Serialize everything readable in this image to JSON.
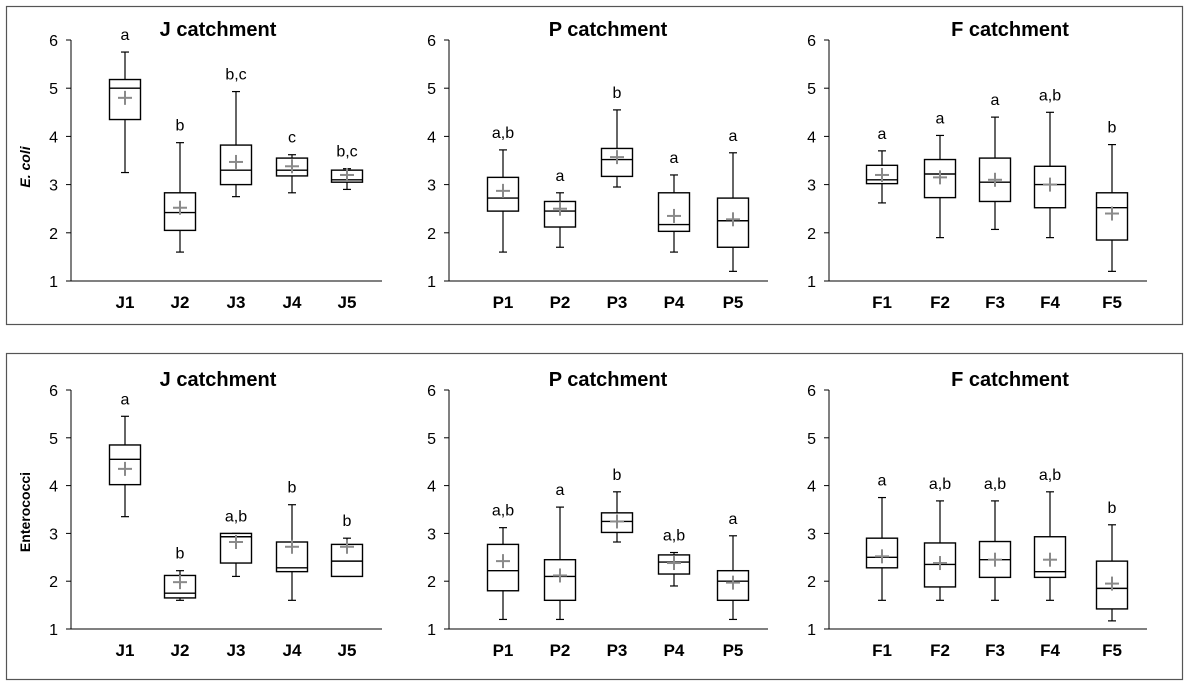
{
  "figure": {
    "rows": [
      {
        "ylabel": "E. coli"
      },
      {
        "ylabel": "Enterococci"
      }
    ]
  },
  "chart_data": [
    {
      "type": "box",
      "row": 0,
      "col": 0,
      "title": "J catchment",
      "ylabel": "E. coli",
      "ylim": [
        1,
        6
      ],
      "yticks": [
        "1",
        "2",
        "3",
        "4",
        "5",
        "6"
      ],
      "categories": [
        "J1",
        "J2",
        "J3",
        "J4",
        "J5"
      ],
      "boxes": [
        {
          "min": 3.25,
          "q1": 4.35,
          "median": 5.0,
          "q3": 5.18,
          "max": 5.75,
          "mean": 4.8,
          "letter": "a"
        },
        {
          "min": 1.6,
          "q1": 2.05,
          "median": 2.42,
          "q3": 2.83,
          "max": 3.87,
          "mean": 2.52,
          "letter": "b"
        },
        {
          "min": 2.75,
          "q1": 3.0,
          "median": 3.3,
          "q3": 3.82,
          "max": 4.93,
          "mean": 3.47,
          "letter": "b,c"
        },
        {
          "min": 2.83,
          "q1": 3.18,
          "median": 3.3,
          "q3": 3.55,
          "max": 3.62,
          "mean": 3.38,
          "letter": "c"
        },
        {
          "min": 2.9,
          "q1": 3.05,
          "median": 3.1,
          "q3": 3.3,
          "max": 3.33,
          "mean": 3.2,
          "letter": "b,c"
        }
      ]
    },
    {
      "type": "box",
      "row": 0,
      "col": 1,
      "title": "P catchment",
      "ylabel": "",
      "ylim": [
        1,
        6
      ],
      "yticks": [
        "1",
        "2",
        "3",
        "4",
        "5",
        "6"
      ],
      "categories": [
        "P1",
        "P2",
        "P3",
        "P4",
        "P5"
      ],
      "boxes": [
        {
          "min": 1.6,
          "q1": 2.45,
          "median": 2.72,
          "q3": 3.15,
          "max": 3.72,
          "mean": 2.87,
          "letter": "a,b"
        },
        {
          "min": 1.7,
          "q1": 2.12,
          "median": 2.45,
          "q3": 2.65,
          "max": 2.83,
          "mean": 2.5,
          "letter": "a"
        },
        {
          "min": 2.95,
          "q1": 3.17,
          "median": 3.52,
          "q3": 3.75,
          "max": 4.55,
          "mean": 3.57,
          "letter": "b"
        },
        {
          "min": 1.6,
          "q1": 2.03,
          "median": 2.17,
          "q3": 2.83,
          "max": 3.2,
          "mean": 2.35,
          "letter": "a"
        },
        {
          "min": 1.2,
          "q1": 1.7,
          "median": 2.25,
          "q3": 2.72,
          "max": 3.66,
          "mean": 2.28,
          "letter": "a"
        }
      ]
    },
    {
      "type": "box",
      "row": 0,
      "col": 2,
      "title": "F catchment",
      "ylabel": "",
      "ylim": [
        1,
        6
      ],
      "yticks": [
        "1",
        "2",
        "3",
        "4",
        "5",
        "6"
      ],
      "categories": [
        "F1",
        "F2",
        "F3",
        "F4",
        "F5"
      ],
      "boxes": [
        {
          "min": 2.62,
          "q1": 3.02,
          "median": 3.1,
          "q3": 3.4,
          "max": 3.7,
          "mean": 3.2,
          "letter": "a"
        },
        {
          "min": 1.9,
          "q1": 2.73,
          "median": 3.22,
          "q3": 3.52,
          "max": 4.02,
          "mean": 3.15,
          "letter": "a"
        },
        {
          "min": 2.07,
          "q1": 2.65,
          "median": 3.05,
          "q3": 3.55,
          "max": 4.4,
          "mean": 3.1,
          "letter": "a"
        },
        {
          "min": 1.9,
          "q1": 2.52,
          "median": 3.0,
          "q3": 3.38,
          "max": 4.5,
          "mean": 3.0,
          "letter": "a,b"
        },
        {
          "min": 1.2,
          "q1": 1.85,
          "median": 2.52,
          "q3": 2.83,
          "max": 3.83,
          "mean": 2.4,
          "letter": "b"
        }
      ]
    },
    {
      "type": "box",
      "row": 1,
      "col": 0,
      "title": "J catchment",
      "ylabel": "Enterococci",
      "ylim": [
        1,
        6
      ],
      "yticks": [
        "1",
        "2",
        "3",
        "4",
        "5",
        "6"
      ],
      "categories": [
        "J1",
        "J2",
        "J3",
        "J4",
        "J5"
      ],
      "boxes": [
        {
          "min": 3.35,
          "q1": 4.02,
          "median": 4.55,
          "q3": 4.85,
          "max": 5.45,
          "mean": 4.35,
          "letter": "a"
        },
        {
          "min": 1.6,
          "q1": 1.65,
          "median": 1.75,
          "q3": 2.12,
          "max": 2.22,
          "mean": 1.98,
          "letter": "b"
        },
        {
          "min": 2.1,
          "q1": 2.38,
          "median": 2.93,
          "q3": 3.0,
          "max": 3.0,
          "mean": 2.82,
          "letter": "a,b"
        },
        {
          "min": 1.6,
          "q1": 2.2,
          "median": 2.28,
          "q3": 2.82,
          "max": 3.6,
          "mean": 2.72,
          "letter": "b"
        },
        {
          "min": 2.1,
          "q1": 2.1,
          "median": 2.42,
          "q3": 2.77,
          "max": 2.9,
          "mean": 2.72,
          "letter": "b"
        }
      ]
    },
    {
      "type": "box",
      "row": 1,
      "col": 1,
      "title": "P catchment",
      "ylabel": "",
      "ylim": [
        1,
        6
      ],
      "yticks": [
        "1",
        "2",
        "3",
        "4",
        "5",
        "6"
      ],
      "categories": [
        "P1",
        "P2",
        "P3",
        "P4",
        "P5"
      ],
      "boxes": [
        {
          "min": 1.2,
          "q1": 1.8,
          "median": 2.22,
          "q3": 2.77,
          "max": 3.12,
          "mean": 2.42,
          "letter": "a,b"
        },
        {
          "min": 1.2,
          "q1": 1.6,
          "median": 2.1,
          "q3": 2.45,
          "max": 3.55,
          "mean": 2.12,
          "letter": "a"
        },
        {
          "min": 2.82,
          "q1": 3.02,
          "median": 3.25,
          "q3": 3.43,
          "max": 3.87,
          "mean": 3.25,
          "letter": "b"
        },
        {
          "min": 1.9,
          "q1": 2.15,
          "median": 2.4,
          "q3": 2.55,
          "max": 2.6,
          "mean": 2.38,
          "letter": "a,b"
        },
        {
          "min": 1.2,
          "q1": 1.6,
          "median": 2.0,
          "q3": 2.22,
          "max": 2.95,
          "mean": 1.97,
          "letter": "a"
        }
      ]
    },
    {
      "type": "box",
      "row": 1,
      "col": 2,
      "title": "F catchment",
      "ylabel": "",
      "ylim": [
        1,
        6
      ],
      "yticks": [
        "1",
        "2",
        "3",
        "4",
        "5",
        "6"
      ],
      "categories": [
        "F1",
        "F2",
        "F3",
        "F4",
        "F5"
      ],
      "boxes": [
        {
          "min": 1.6,
          "q1": 2.28,
          "median": 2.5,
          "q3": 2.9,
          "max": 3.75,
          "mean": 2.52,
          "letter": "a"
        },
        {
          "min": 1.6,
          "q1": 1.88,
          "median": 2.35,
          "q3": 2.8,
          "max": 3.68,
          "mean": 2.38,
          "letter": "a,b"
        },
        {
          "min": 1.6,
          "q1": 2.08,
          "median": 2.45,
          "q3": 2.83,
          "max": 3.68,
          "mean": 2.45,
          "letter": "a,b"
        },
        {
          "min": 1.6,
          "q1": 2.08,
          "median": 2.2,
          "q3": 2.93,
          "max": 3.87,
          "mean": 2.45,
          "letter": "a,b"
        },
        {
          "min": 1.17,
          "q1": 1.42,
          "median": 1.85,
          "q3": 2.42,
          "max": 3.18,
          "mean": 1.95,
          "letter": "b"
        }
      ]
    }
  ]
}
